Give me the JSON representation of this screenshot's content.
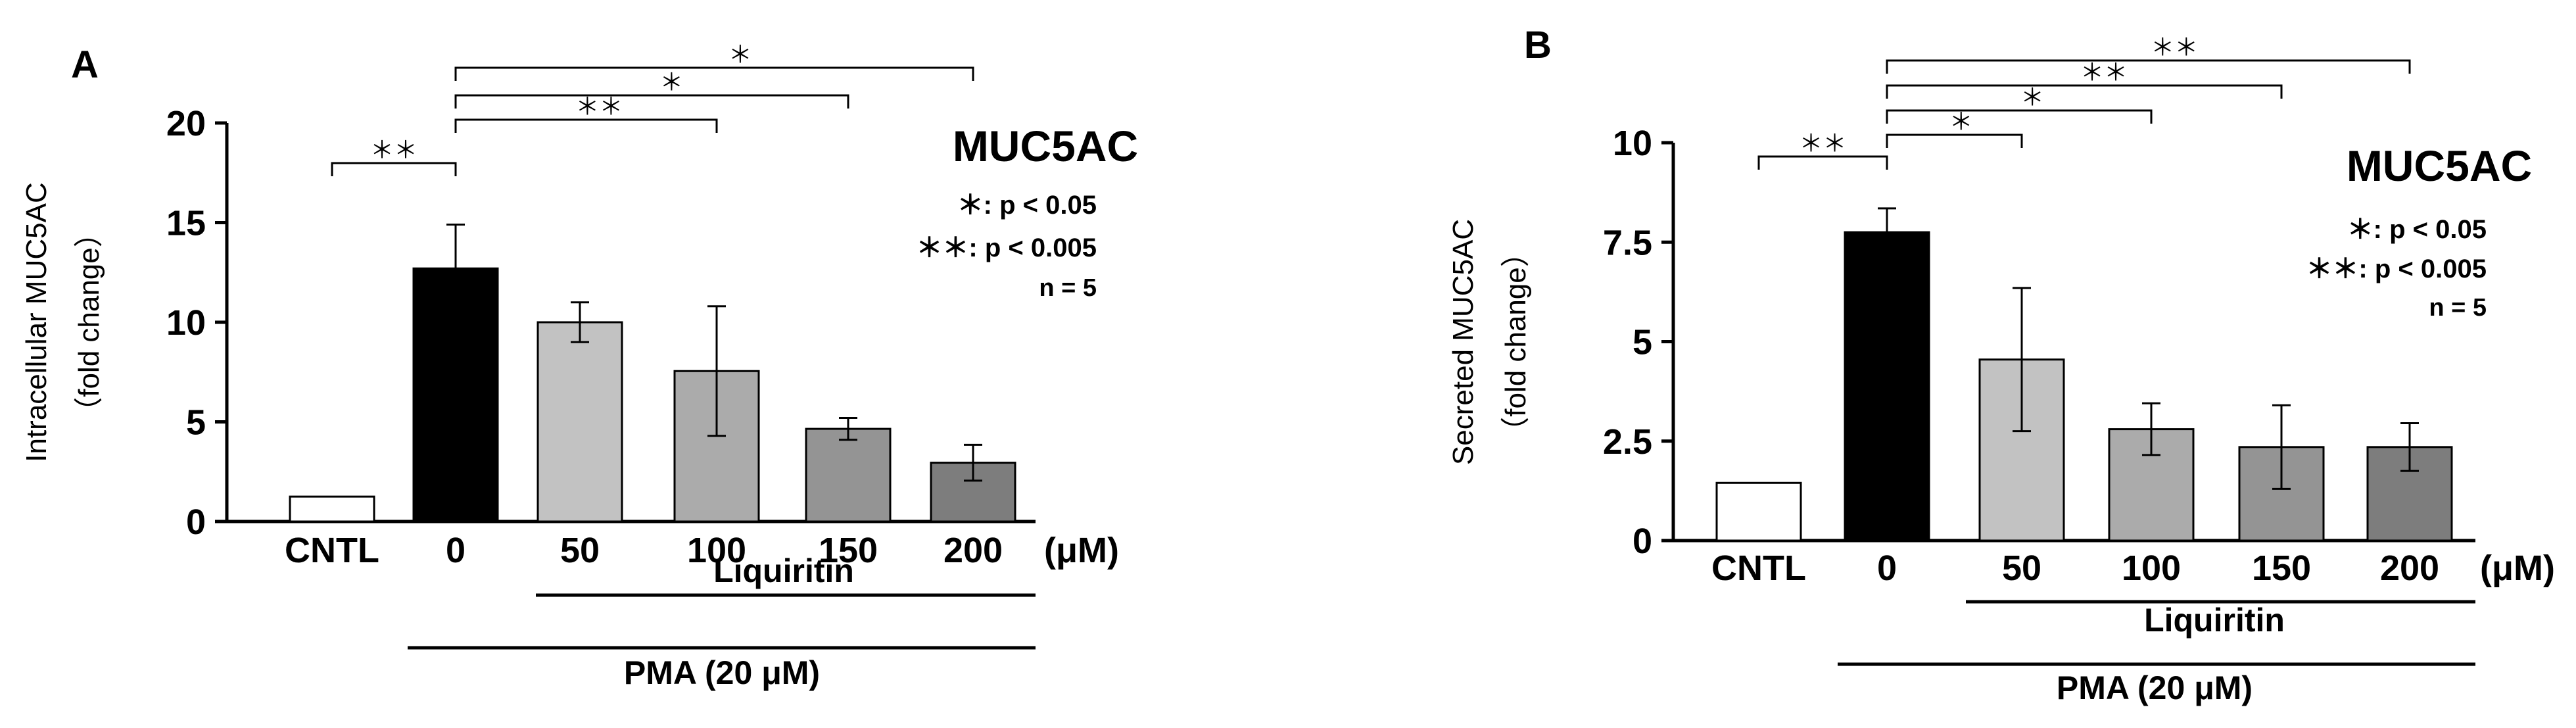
{
  "chart_data": [
    {
      "panel_label": "A",
      "type": "bar",
      "title": "MUC5AC",
      "ylabel_line1": "Intracellular MUC5AC",
      "ylabel_line2": "（fold change）",
      "ylim": [
        0,
        20
      ],
      "yticks": [
        0,
        5,
        10,
        15,
        20
      ],
      "ytick_labels": [
        "0",
        "5",
        "10",
        "15",
        "20"
      ],
      "categories": [
        "CNTL",
        "0",
        "50",
        "100",
        "150",
        "200"
      ],
      "unit_label": "(μM)",
      "values": [
        1.25,
        12.7,
        10.0,
        7.55,
        4.65,
        2.95
      ],
      "errors": [
        0,
        2.2,
        1.0,
        3.25,
        0.55,
        0.9
      ],
      "bar_colors": [
        "#ffffff",
        "#000000",
        "#c2c2c2",
        "#ababab",
        "#949494",
        "#7d7d7d"
      ],
      "group_labels": {
        "liquiritin": "Liquiritin",
        "pma": "PMA (20 μM)"
      },
      "legend": [
        "＊: p < 0.05",
        "＊＊: p < 0.005",
        "n = 5"
      ],
      "significance": [
        {
          "from": 0,
          "to": 1,
          "label": "＊＊"
        },
        {
          "from": 1,
          "to": 3,
          "label": "＊＊"
        },
        {
          "from": 1,
          "to": 4,
          "label": "＊"
        },
        {
          "from": 1,
          "to": 5,
          "label": "＊"
        }
      ]
    },
    {
      "panel_label": "B",
      "type": "bar",
      "title": "MUC5AC",
      "ylabel_line1": "Secreted MUC5AC",
      "ylabel_line2": "（fold change）",
      "ylim": [
        0,
        10
      ],
      "yticks": [
        0,
        2.5,
        5,
        7.5,
        10
      ],
      "ytick_labels": [
        "0",
        "2.5",
        "5",
        "7.5",
        "10"
      ],
      "categories": [
        "CNTL",
        "0",
        "50",
        "100",
        "150",
        "200"
      ],
      "unit_label": "(μM)",
      "values": [
        1.45,
        7.75,
        4.55,
        2.8,
        2.35,
        2.35
      ],
      "errors": [
        0,
        0.6,
        1.8,
        0.65,
        1.05,
        0.6
      ],
      "bar_colors": [
        "#ffffff",
        "#000000",
        "#c2c2c2",
        "#ababab",
        "#949494",
        "#7d7d7d"
      ],
      "group_labels": {
        "liquiritin": "Liquiritin",
        "pma": "PMA (20 μM)"
      },
      "legend": [
        "＊: p < 0.05",
        "＊＊: p < 0.005",
        "n = 5"
      ],
      "significance": [
        {
          "from": 0,
          "to": 1,
          "label": "＊＊"
        },
        {
          "from": 1,
          "to": 2,
          "label": "＊"
        },
        {
          "from": 1,
          "to": 3,
          "label": "＊"
        },
        {
          "from": 1,
          "to": 4,
          "label": "＊＊"
        },
        {
          "from": 1,
          "to": 5,
          "label": "＊＊"
        }
      ]
    }
  ]
}
